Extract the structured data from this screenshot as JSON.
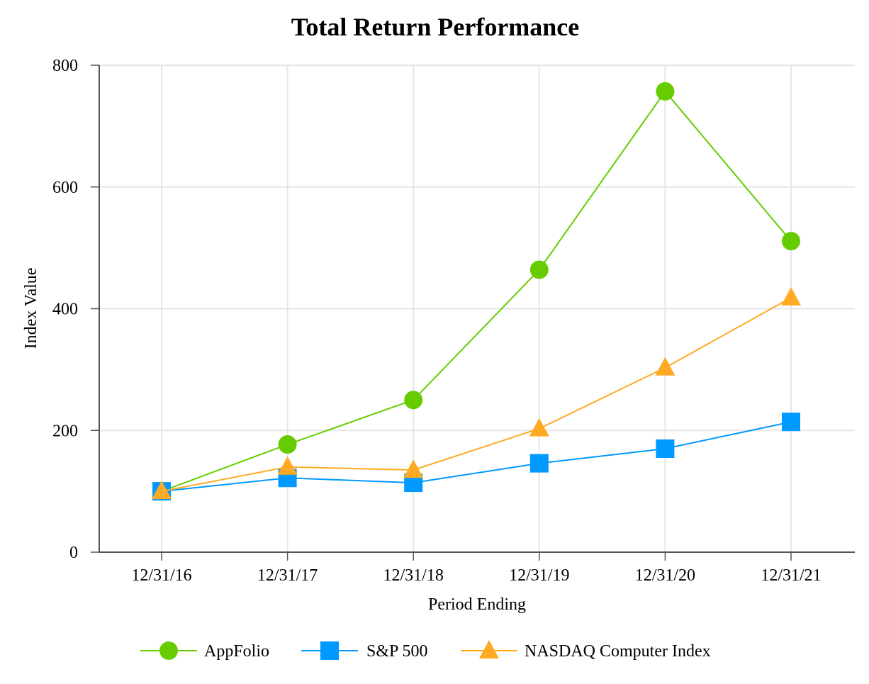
{
  "chart_data": {
    "type": "line",
    "title": "Total Return Performance",
    "xlabel": "Period Ending",
    "ylabel": "Index Value",
    "categories": [
      "12/31/16",
      "12/31/17",
      "12/31/18",
      "12/31/19",
      "12/31/20",
      "12/31/21"
    ],
    "ylim": [
      0,
      800
    ],
    "yticks": [
      0,
      200,
      400,
      600,
      800
    ],
    "grid": true,
    "legend_position": "bottom",
    "series": [
      {
        "name": "AppFolio",
        "values": [
          100,
          177,
          250,
          464,
          757,
          511
        ],
        "color": "#66cc00",
        "marker": "circle"
      },
      {
        "name": "S&P 500",
        "values": [
          100,
          122,
          114,
          146,
          170,
          214
        ],
        "color": "#0099ff",
        "marker": "square"
      },
      {
        "name": "NASDAQ Computer Index",
        "values": [
          100,
          140,
          135,
          203,
          303,
          418
        ],
        "color": "#ffaa22",
        "marker": "triangle"
      }
    ]
  }
}
